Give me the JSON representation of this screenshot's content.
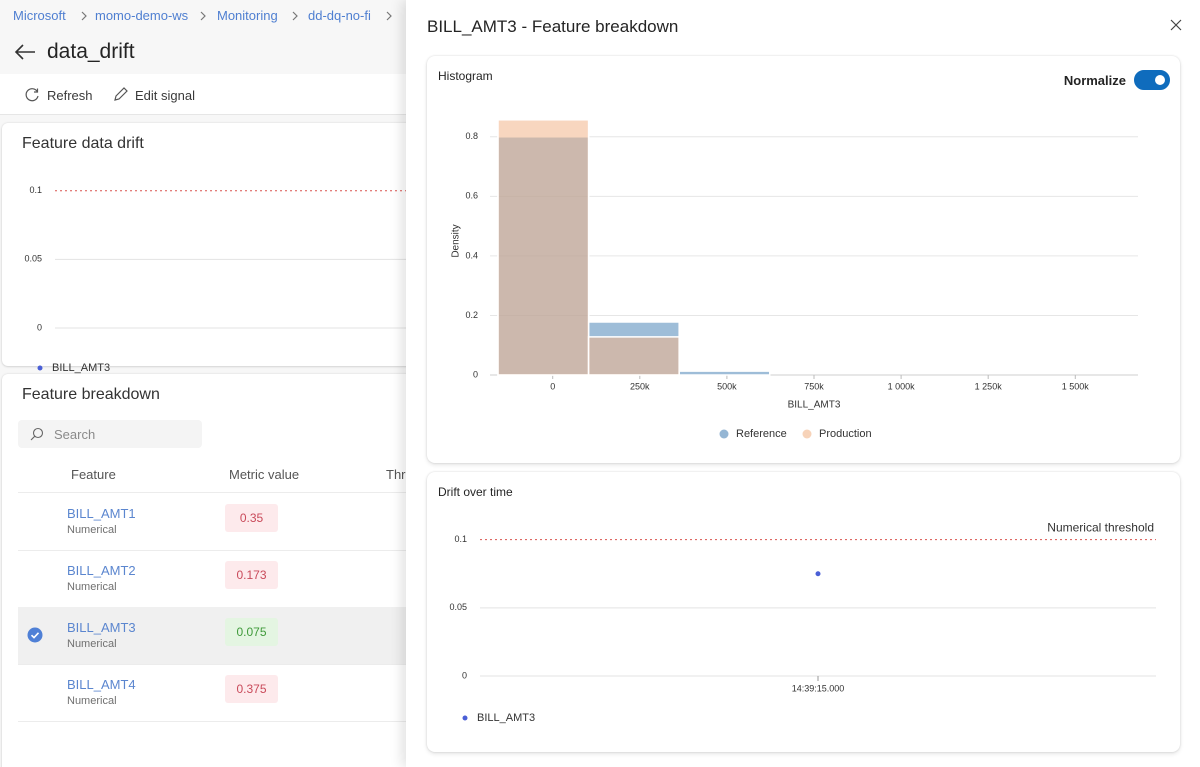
{
  "breadcrumb": [
    "Microsoft",
    "momo-demo-ws",
    "Monitoring",
    "dd-dq-no-fi"
  ],
  "page_title": "data_drift",
  "toolbar": [
    "Refresh",
    "Edit signal"
  ],
  "drift_card_title": "Feature data drift",
  "breakdown_title": "Feature breakdown",
  "search_placeholder": "Search",
  "table": {
    "columns": [
      "Feature",
      "Metric value",
      "Threshold"
    ],
    "rows": [
      {
        "feature": "BILL_AMT1",
        "kind": "Numerical",
        "metric": 0.35
      },
      {
        "feature": "BILL_AMT2",
        "kind": "Numerical",
        "metric": 0.173
      },
      {
        "feature": "BILL_AMT3",
        "kind": "Numerical",
        "metric": 0.075,
        "selected": true
      },
      {
        "feature": "BILL_AMT4",
        "kind": "Numerical",
        "metric": 0.375
      }
    ]
  },
  "panel": {
    "title": "BILL_AMT3 - Feature breakdown",
    "histogram_title": "Histogram",
    "normalize_label": "Normalize",
    "normalize": true,
    "drift_title": "Drift over time"
  },
  "chart_data": [
    {
      "type": "line",
      "categories": [
        null
      ],
      "series": [
        {
          "name": "BILL_AMT3",
          "color": "#4a5fd6",
          "values": [
            0.075
          ]
        }
      ],
      "ylim": [
        0,
        0.11
      ],
      "yticks": [
        0,
        0.05,
        0.1
      ],
      "threshold": 0.1,
      "threshold_color": "#d9534f",
      "grid": true
    },
    {
      "type": "histogram",
      "xlabel": "BILL_AMT3",
      "ylabel": "Density",
      "bins": [
        -157000,
        103000,
        363000,
        623000,
        883000,
        1143000,
        1404000,
        1664000
      ],
      "series": [
        {
          "name": "Reference",
          "color": "#4f86b8",
          "values": [
            0.8,
            0.178,
            0.013,
            0,
            0,
            0,
            0
          ]
        },
        {
          "name": "Production",
          "color": "#f2b58a",
          "values": [
            0.857,
            0.128,
            0,
            0,
            0,
            0,
            0
          ]
        }
      ],
      "xlim": [
        -180000,
        1680000
      ],
      "ylim": [
        0,
        0.9
      ],
      "xticks": [
        0,
        {
          "value": 250000,
          "label": "250k"
        },
        {
          "value": 500000,
          "label": "500k"
        },
        {
          "value": 750000,
          "label": "750k"
        },
        {
          "value": 1000000,
          "label": "1 000k"
        },
        {
          "value": 1250000,
          "label": "1 250k"
        },
        {
          "value": 1500000,
          "label": "1 500k"
        }
      ],
      "yticks": [
        0,
        0.2,
        0.4,
        0.6,
        0.8
      ],
      "grid": true
    },
    {
      "type": "line",
      "categories": [
        "14:39:15.000"
      ],
      "series": [
        {
          "name": "BILL_AMT3",
          "color": "#4a5fd6",
          "values": [
            0.075
          ]
        }
      ],
      "ylim": [
        0,
        0.11
      ],
      "yticks": [
        0,
        0.05,
        0.1
      ],
      "threshold": 0.1,
      "threshold_label": "Numerical threshold",
      "threshold_color": "#d9534f",
      "grid": true
    }
  ]
}
